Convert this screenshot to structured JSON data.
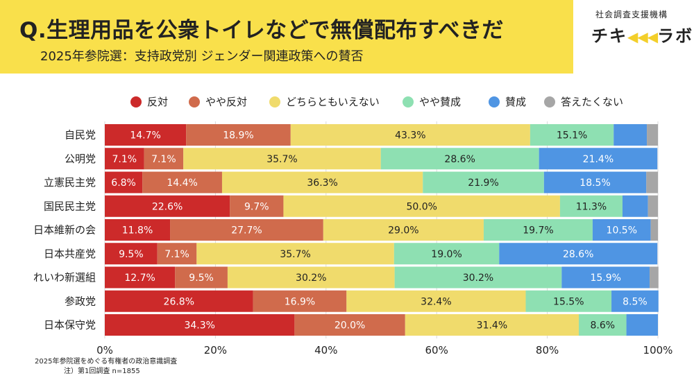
{
  "header": {
    "title": "Q.生理用品を公衆トイレなどで無償配布すべきだ",
    "subtitle": "2025年参院選：支持政党別 ジェンダー関連政策への賛否"
  },
  "brand": {
    "org": "社会調査支援機構",
    "logo_left": "チキ",
    "logo_dots": "◀◀◀",
    "logo_right": "ラボ"
  },
  "colors": {
    "banner": "#f9e04b",
    "oppose": "#cc2a2a",
    "somewhat_oppose": "#d06b4c",
    "neutral": "#f0db6c",
    "somewhat_support": "#8ee0b2",
    "support": "#4f95e3",
    "no_answer": "#a6a6a6"
  },
  "chart_data": {
    "type": "bar",
    "orientation": "horizontal",
    "stacked": true,
    "title": "Q.生理用品を公衆トイレなどで無償配布すべきだ",
    "subtitle": "2025年参院選：支持政党別 ジェンダー関連政策への賛否",
    "categories": [
      "自民党",
      "公明党",
      "立憲民主党",
      "国民民主党",
      "日本維新の会",
      "日本共産党",
      "れいわ新選組",
      "参政党",
      "日本保守党"
    ],
    "series": [
      {
        "name": "反対",
        "values": [
          14.7,
          7.1,
          6.8,
          22.6,
          11.8,
          9.5,
          12.7,
          26.8,
          34.3
        ]
      },
      {
        "name": "やや反対",
        "values": [
          18.9,
          7.1,
          14.4,
          9.7,
          27.7,
          7.1,
          9.5,
          16.9,
          20.0
        ]
      },
      {
        "name": "どちらともいえない",
        "values": [
          43.3,
          35.7,
          36.3,
          50.0,
          29.0,
          35.7,
          30.2,
          32.4,
          31.4
        ]
      },
      {
        "name": "やや賛成",
        "values": [
          15.1,
          28.6,
          21.9,
          11.3,
          19.7,
          19.0,
          30.2,
          15.5,
          8.6
        ]
      },
      {
        "name": "賛成",
        "values": [
          6.0,
          21.4,
          18.5,
          4.6,
          10.5,
          28.6,
          15.9,
          8.5,
          5.7
        ]
      },
      {
        "name": "答えたくない",
        "values": [
          2.0,
          0.0,
          2.1,
          1.8,
          1.3,
          0.0,
          1.6,
          0.0,
          0.0
        ]
      }
    ],
    "value_labels": [
      [
        "14.7%",
        "18.9%",
        "43.3%",
        "15.1%",
        "",
        ""
      ],
      [
        "7.1%",
        "7.1%",
        "35.7%",
        "28.6%",
        "21.4%",
        ""
      ],
      [
        "6.8%",
        "14.4%",
        "36.3%",
        "21.9%",
        "18.5%",
        ""
      ],
      [
        "22.6%",
        "9.7%",
        "50.0%",
        "11.3%",
        "",
        ""
      ],
      [
        "11.8%",
        "27.7%",
        "29.0%",
        "19.7%",
        "10.5%",
        ""
      ],
      [
        "9.5%",
        "7.1%",
        "35.7%",
        "19.0%",
        "28.6%",
        ""
      ],
      [
        "12.7%",
        "9.5%",
        "30.2%",
        "30.2%",
        "15.9%",
        ""
      ],
      [
        "26.8%",
        "16.9%",
        "32.4%",
        "15.5%",
        "8.5%",
        ""
      ],
      [
        "34.3%",
        "20.0%",
        "31.4%",
        "8.6%",
        "",
        ""
      ]
    ],
    "xlim": [
      0,
      100
    ],
    "x_ticks": [
      "0%",
      "20%",
      "40%",
      "60%",
      "80%",
      "100%"
    ],
    "grid": true,
    "legend_position": "top"
  },
  "footnote": {
    "line1": "2025年参院選をめぐる有権者の政治意識調査",
    "line2": "注）第1回調査 n=1855"
  }
}
